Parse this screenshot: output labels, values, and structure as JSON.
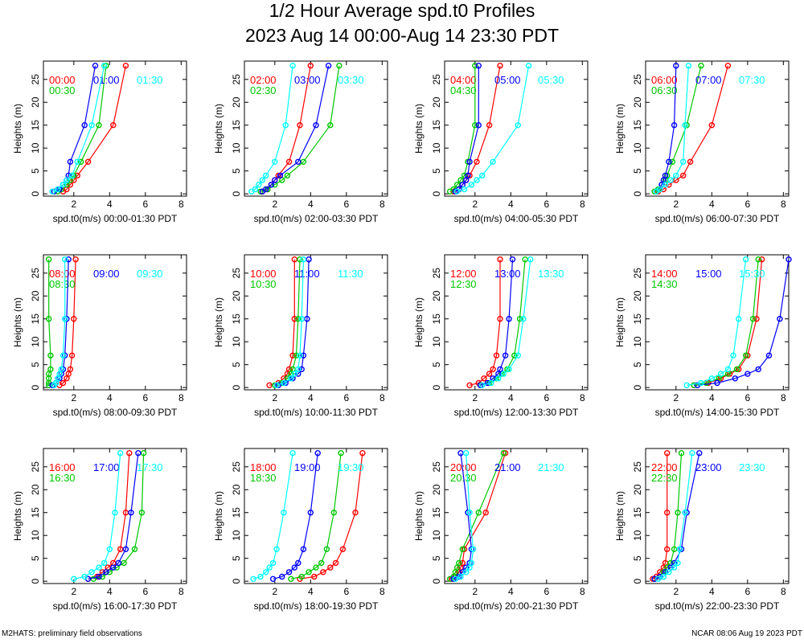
{
  "title": "1/2 Hour Average spd.t0 Profiles",
  "subtitle": "2023 Aug 14 00:00-Aug 14 23:30 PDT",
  "footer_left": "M2HATS: preliminary field observations",
  "footer_right": "NCAR 08:06 Aug 19 2023 PDT",
  "colors": {
    "series1": "#ff0000",
    "series2": "#00c800",
    "series3": "#0000ff",
    "series4": "#00ffff"
  },
  "chart_data": {
    "type": "line",
    "heights": [
      0.5,
      1,
      2,
      3,
      4,
      7,
      15,
      28
    ],
    "ylabel": "Heights (m)",
    "yticks": [
      0,
      5,
      10,
      15,
      20,
      25
    ],
    "ylim": [
      -0.5,
      29
    ],
    "xticks": [
      2,
      4,
      6,
      8
    ],
    "xlim": [
      0.3,
      8.3
    ],
    "panels": [
      {
        "xlabel": "spd.t0(m/s) 00:00-01:30 PDT",
        "series": [
          {
            "name": "00:00",
            "values": [
              1.4,
              1.6,
              1.8,
              2.0,
              2.2,
              2.8,
              4.2,
              4.9
            ]
          },
          {
            "name": "00:30",
            "values": [
              1.1,
              1.3,
              1.6,
              1.8,
              2.0,
              2.4,
              3.4,
              3.8
            ]
          },
          {
            "name": "01:00",
            "values": [
              0.9,
              1.2,
              1.4,
              1.6,
              1.7,
              1.8,
              2.6,
              3.2
            ]
          },
          {
            "name": "01:30",
            "values": [
              0.8,
              1.1,
              1.4,
              1.6,
              1.9,
              2.2,
              3.0,
              3.7
            ]
          }
        ]
      },
      {
        "xlabel": "spd.t0(m/s) 02:00-03:30 PDT",
        "series": [
          {
            "name": "02:00",
            "values": [
              1.3,
              1.6,
              1.8,
              2.0,
              2.2,
              2.8,
              3.4,
              4.0
            ]
          },
          {
            "name": "02:30",
            "values": [
              1.2,
              1.6,
              2.0,
              2.4,
              2.7,
              3.6,
              5.1,
              5.6
            ]
          },
          {
            "name": "03:00",
            "values": [
              1.3,
              1.5,
              1.8,
              2.0,
              2.3,
              3.3,
              4.3,
              5.0
            ]
          },
          {
            "name": "03:30",
            "values": [
              0.7,
              0.9,
              1.1,
              1.3,
              1.5,
              2.0,
              2.6,
              3.0
            ]
          }
        ]
      },
      {
        "xlabel": "spd.t0(m/s) 04:00-05:30 PDT",
        "series": [
          {
            "name": "04:00",
            "values": [
              0.8,
              1.1,
              1.3,
              1.5,
              1.7,
              2.1,
              2.8,
              3.4
            ]
          },
          {
            "name": "04:30",
            "values": [
              0.6,
              0.8,
              1.0,
              1.2,
              1.4,
              1.6,
              2.0,
              2.0
            ]
          },
          {
            "name": "05:00",
            "values": [
              0.9,
              1.1,
              1.3,
              1.5,
              1.6,
              1.7,
              2.2,
              2.2
            ]
          },
          {
            "name": "05:30",
            "values": [
              1.0,
              1.4,
              1.8,
              2.1,
              2.4,
              3.0,
              4.4,
              5.0
            ]
          }
        ]
      },
      {
        "xlabel": "spd.t0(m/s) 06:00-07:30 PDT",
        "series": [
          {
            "name": "06:00",
            "values": [
              1.0,
              1.3,
              1.6,
              2.0,
              2.4,
              2.8,
              4.0,
              4.9
            ]
          },
          {
            "name": "06:30",
            "values": [
              0.8,
              1.0,
              1.2,
              1.4,
              1.5,
              1.8,
              2.6,
              3.4
            ]
          },
          {
            "name": "07:00",
            "values": [
              0.9,
              1.1,
              1.2,
              1.3,
              1.4,
              1.6,
              1.9,
              2.0
            ]
          },
          {
            "name": "07:30",
            "values": [
              0.9,
              1.1,
              1.4,
              1.7,
              2.0,
              2.4,
              2.5,
              2.7
            ]
          }
        ]
      },
      {
        "xlabel": "spd.t0(m/s) 08:00-09:30 PDT",
        "series": [
          {
            "name": "08:00",
            "values": [
              1.2,
              1.4,
              1.6,
              1.7,
              1.8,
              1.9,
              2.0,
              2.1
            ]
          },
          {
            "name": "08:30",
            "values": [
              0.6,
              0.6,
              0.6,
              0.6,
              0.7,
              0.7,
              0.6,
              0.6
            ]
          },
          {
            "name": "09:00",
            "values": [
              0.8,
              1.0,
              1.2,
              1.3,
              1.4,
              1.5,
              1.6,
              1.7
            ]
          },
          {
            "name": "09:30",
            "values": [
              0.9,
              1.0,
              1.1,
              1.2,
              1.3,
              1.4,
              1.5,
              1.5
            ]
          }
        ]
      },
      {
        "xlabel": "spd.t0(m/s) 10:00-11:30 PDT",
        "series": [
          {
            "name": "10:00",
            "values": [
              1.7,
              2.2,
              2.5,
              2.7,
              2.8,
              3.0,
              3.1,
              3.1
            ]
          },
          {
            "name": "10:30",
            "values": [
              2.0,
              2.4,
              2.7,
              2.9,
              3.0,
              3.2,
              3.3,
              3.4
            ]
          },
          {
            "name": "11:00",
            "values": [
              2.2,
              2.6,
              3.0,
              3.3,
              3.5,
              3.6,
              3.8,
              3.9
            ]
          },
          {
            "name": "11:30",
            "values": [
              2.1,
              2.5,
              2.9,
              3.1,
              3.3,
              3.4,
              3.5,
              3.6
            ]
          }
        ]
      },
      {
        "xlabel": "spd.t0(m/s) 12:00-13:30 PDT",
        "series": [
          {
            "name": "12:00",
            "values": [
              1.7,
              2.2,
              2.5,
              2.8,
              3.0,
              3.2,
              3.4,
              3.4
            ]
          },
          {
            "name": "12:30",
            "values": [
              2.3,
              2.8,
              3.2,
              3.5,
              3.8,
              4.2,
              4.5,
              4.8
            ]
          },
          {
            "name": "13:00",
            "values": [
              2.3,
              2.7,
              3.0,
              3.3,
              3.4,
              3.7,
              3.9,
              4.1
            ]
          },
          {
            "name": "13:30",
            "values": [
              2.4,
              2.9,
              3.3,
              3.6,
              3.9,
              4.4,
              4.7,
              5.1
            ]
          }
        ]
      },
      {
        "xlabel": "spd.t0(m/s) 14:00-15:30 PDT",
        "series": [
          {
            "name": "14:00",
            "values": [
              3.0,
              3.8,
              4.5,
              5.0,
              5.5,
              6.0,
              6.5,
              6.8
            ]
          },
          {
            "name": "14:30",
            "values": [
              3.0,
              3.7,
              4.4,
              4.9,
              5.4,
              5.9,
              6.3,
              6.6
            ]
          },
          {
            "name": "15:00",
            "values": [
              3.2,
              4.3,
              5.3,
              6.0,
              6.6,
              7.2,
              7.8,
              8.3
            ]
          },
          {
            "name": "15:30",
            "values": [
              2.6,
              3.4,
              4.0,
              4.5,
              4.9,
              5.2,
              5.5,
              5.9
            ]
          }
        ]
      },
      {
        "xlabel": "spd.t0(m/s) 16:00-17:30 PDT",
        "series": [
          {
            "name": "16:00",
            "values": [
              2.8,
              3.3,
              3.6,
              3.9,
              4.2,
              4.6,
              4.9,
              5.1
            ]
          },
          {
            "name": "16:30",
            "values": [
              3.1,
              3.6,
              4.0,
              4.4,
              4.8,
              5.4,
              5.8,
              5.9
            ]
          },
          {
            "name": "17:00",
            "values": [
              2.8,
              3.4,
              3.8,
              4.2,
              4.5,
              4.9,
              5.2,
              5.6
            ]
          },
          {
            "name": "17:30",
            "values": [
              2.0,
              2.6,
              3.0,
              3.4,
              3.7,
              4.0,
              4.3,
              4.6
            ]
          }
        ]
      },
      {
        "xlabel": "spd.t0(m/s) 18:00-19:30 PDT",
        "series": [
          {
            "name": "18:00",
            "values": [
              3.4,
              4.2,
              4.7,
              5.1,
              5.4,
              5.8,
              6.5,
              6.9
            ]
          },
          {
            "name": "18:30",
            "values": [
              2.9,
              3.5,
              3.9,
              4.3,
              4.6,
              4.9,
              5.3,
              5.7
            ]
          },
          {
            "name": "19:00",
            "values": [
              1.9,
              2.4,
              2.8,
              3.1,
              3.3,
              3.6,
              4.0,
              4.4
            ]
          },
          {
            "name": "19:30",
            "values": [
              0.8,
              1.2,
              1.5,
              1.7,
              1.9,
              2.1,
              2.5,
              3.0
            ]
          }
        ]
      },
      {
        "xlabel": "spd.t0(m/s) 20:00-21:30 PDT",
        "series": [
          {
            "name": "20:00",
            "values": [
              0.7,
              0.9,
              1.1,
              1.2,
              1.3,
              1.4,
              2.6,
              3.7
            ]
          },
          {
            "name": "20:30",
            "values": [
              0.6,
              0.8,
              0.9,
              1.0,
              1.1,
              1.3,
              2.2,
              3.6
            ]
          },
          {
            "name": "21:00",
            "values": [
              0.8,
              1.1,
              1.3,
              1.5,
              1.7,
              1.8,
              1.6,
              1.2
            ]
          },
          {
            "name": "21:30",
            "values": [
              0.9,
              1.2,
              1.5,
              1.7,
              1.8,
              1.9,
              1.7,
              1.5
            ]
          }
        ]
      },
      {
        "xlabel": "spd.t0(m/s) 22:00-23:30 PDT",
        "series": [
          {
            "name": "22:00",
            "values": [
              0.7,
              0.9,
              1.1,
              1.3,
              1.4,
              1.5,
              1.5,
              1.5
            ]
          },
          {
            "name": "22:30",
            "values": [
              0.8,
              1.1,
              1.3,
              1.5,
              1.7,
              1.9,
              2.1,
              2.3
            ]
          },
          {
            "name": "23:00",
            "values": [
              0.8,
              1.1,
              1.4,
              1.7,
              1.9,
              2.3,
              2.6,
              3.3
            ]
          },
          {
            "name": "23:30",
            "values": [
              1.0,
              1.3,
              1.6,
              1.9,
              2.1,
              2.2,
              2.5,
              2.9
            ]
          }
        ]
      }
    ]
  }
}
